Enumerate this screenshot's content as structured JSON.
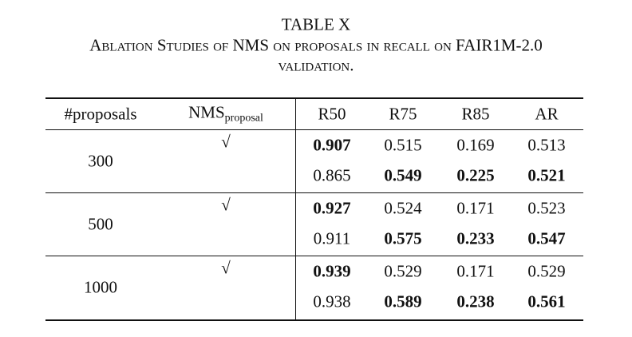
{
  "table_number": "TABLE X",
  "caption_lines": [
    "Ablation Studies of NMS on proposals in recall on FAIR1M-2.0",
    "validation."
  ],
  "table": {
    "header": [
      "#proposals",
      {
        "main": "NMS",
        "sub": "proposal"
      },
      "R50",
      "R75",
      "R85",
      "AR"
    ],
    "groups": [
      {
        "proposals": "300",
        "rows": [
          {
            "nms": "√",
            "values": [
              "0.907",
              "0.515",
              "0.169",
              "0.513"
            ],
            "bold": [
              0
            ]
          },
          {
            "nms": null,
            "values": [
              "0.865",
              "0.549",
              "0.225",
              "0.521"
            ],
            "bold": [
              1,
              2,
              3
            ]
          }
        ]
      },
      {
        "proposals": "500",
        "rows": [
          {
            "nms": "√",
            "values": [
              "0.927",
              "0.524",
              "0.171",
              "0.523"
            ],
            "bold": [
              0
            ]
          },
          {
            "nms": null,
            "values": [
              "0.911",
              "0.575",
              "0.233",
              "0.547"
            ],
            "bold": [
              1,
              2,
              3
            ]
          }
        ]
      },
      {
        "proposals": "1000",
        "rows": [
          {
            "nms": "√",
            "values": [
              "0.939",
              "0.529",
              "0.171",
              "0.529"
            ],
            "bold": [
              0
            ]
          },
          {
            "nms": null,
            "values": [
              "0.938",
              "0.589",
              "0.238",
              "0.561"
            ],
            "bold": [
              1,
              2,
              3
            ]
          }
        ]
      }
    ]
  }
}
